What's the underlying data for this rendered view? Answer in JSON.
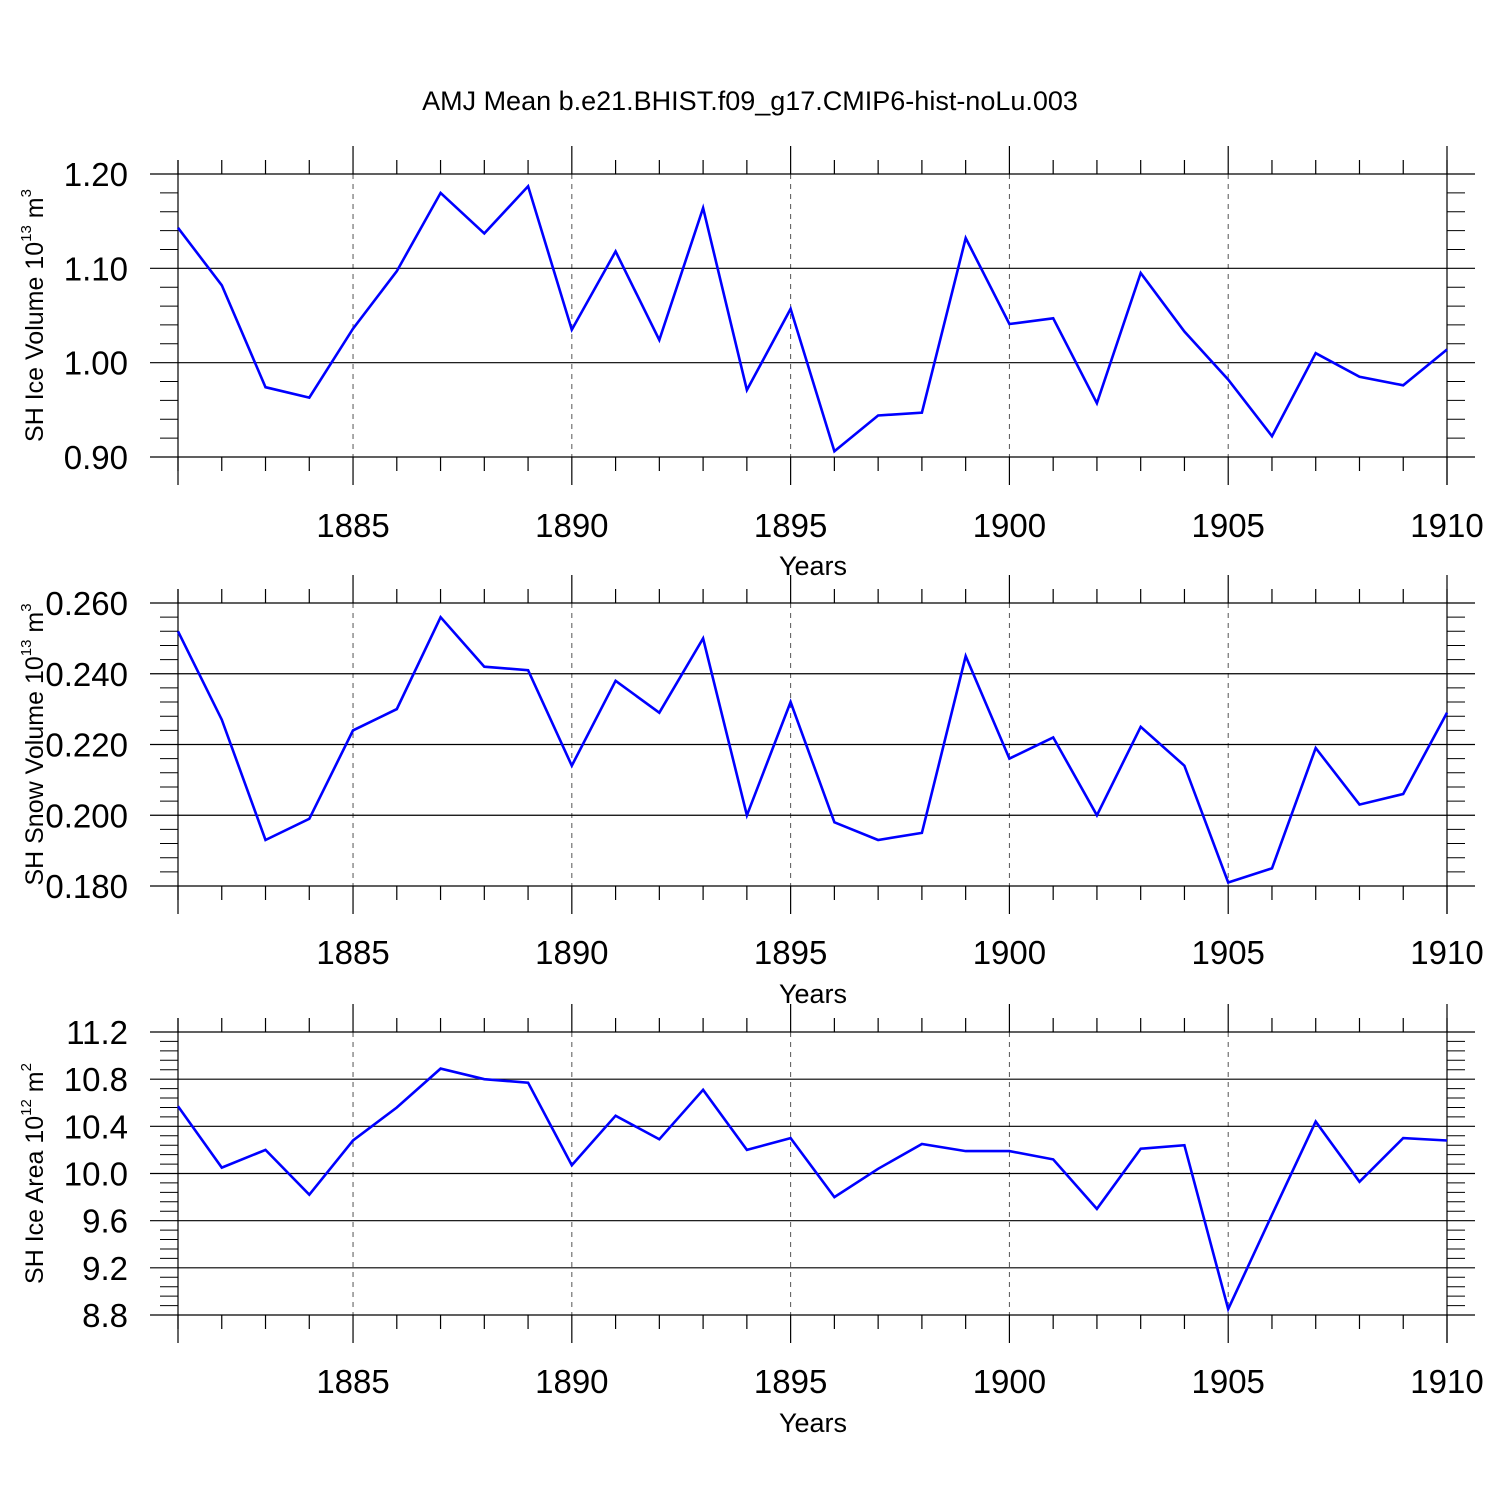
{
  "figure": {
    "title": "AMJ Mean b.e21.BHIST.f09_g17.CMIP6-hist-noLu.003"
  },
  "chart_data": [
    {
      "type": "line",
      "xlabel": "Years",
      "ylabel": {
        "main": "SH Ice Volume 10",
        "exp": "13",
        "unit": " m",
        "unit_exp": "3"
      },
      "xlim": [
        1881,
        1910
      ],
      "xticks": [
        1885,
        1890,
        1895,
        1900,
        1905,
        1910
      ],
      "ylim": [
        0.9,
        1.2
      ],
      "yticks": [
        0.9,
        1.0,
        1.1,
        1.2
      ],
      "ytick_labels": [
        "0.90",
        "1.00",
        "1.10",
        "1.20"
      ],
      "grid": "vertical dashed at major x ticks",
      "color": "#0000ff",
      "x": [
        1881,
        1882,
        1883,
        1884,
        1885,
        1886,
        1887,
        1888,
        1889,
        1890,
        1891,
        1892,
        1893,
        1894,
        1895,
        1896,
        1897,
        1898,
        1899,
        1900,
        1901,
        1902,
        1903,
        1904,
        1905,
        1906,
        1907,
        1908,
        1909,
        1910
      ],
      "values": [
        1.143,
        1.082,
        0.974,
        0.963,
        1.036,
        1.097,
        1.18,
        1.137,
        1.187,
        1.035,
        1.118,
        1.024,
        1.164,
        0.971,
        1.057,
        0.906,
        0.944,
        0.947,
        1.132,
        1.041,
        1.047,
        0.957,
        1.095,
        1.033,
        0.982,
        0.922,
        1.01,
        0.985,
        0.976,
        1.014
      ]
    },
    {
      "type": "line",
      "xlabel": "Years",
      "ylabel": {
        "main": "SH Snow Volume 10",
        "exp": "13",
        "unit": " m",
        "unit_exp": "3"
      },
      "xlim": [
        1881,
        1910
      ],
      "xticks": [
        1885,
        1890,
        1895,
        1900,
        1905,
        1910
      ],
      "ylim": [
        0.18,
        0.26
      ],
      "yticks": [
        0.18,
        0.2,
        0.22,
        0.24,
        0.26
      ],
      "ytick_labels": [
        "0.180",
        "0.200",
        "0.220",
        "0.240",
        "0.260"
      ],
      "grid": "vertical dashed at major x ticks",
      "color": "#0000ff",
      "x": [
        1881,
        1882,
        1883,
        1884,
        1885,
        1886,
        1887,
        1888,
        1889,
        1890,
        1891,
        1892,
        1893,
        1894,
        1895,
        1896,
        1897,
        1898,
        1899,
        1900,
        1901,
        1902,
        1903,
        1904,
        1905,
        1906,
        1907,
        1908,
        1909,
        1910
      ],
      "values": [
        0.252,
        0.227,
        0.193,
        0.199,
        0.224,
        0.23,
        0.256,
        0.242,
        0.241,
        0.214,
        0.238,
        0.229,
        0.25,
        0.2,
        0.232,
        0.198,
        0.193,
        0.195,
        0.245,
        0.216,
        0.222,
        0.2,
        0.225,
        0.214,
        0.181,
        0.185,
        0.219,
        0.203,
        0.206,
        0.229
      ]
    },
    {
      "type": "line",
      "xlabel": "Years",
      "ylabel": {
        "main": "SH Ice Area 10",
        "exp": "12",
        "unit": " m",
        "unit_exp": "2"
      },
      "xlim": [
        1881,
        1910
      ],
      "xticks": [
        1885,
        1890,
        1895,
        1900,
        1905,
        1910
      ],
      "ylim": [
        8.8,
        11.2
      ],
      "yticks": [
        8.8,
        9.2,
        9.6,
        10.0,
        10.4,
        10.8,
        11.2
      ],
      "ytick_labels": [
        "8.8",
        "9.2",
        "9.6",
        "10.0",
        "10.4",
        "10.8",
        "11.2"
      ],
      "grid": "vertical dashed at major x ticks",
      "color": "#0000ff",
      "x": [
        1881,
        1882,
        1883,
        1884,
        1885,
        1886,
        1887,
        1888,
        1889,
        1890,
        1891,
        1892,
        1893,
        1894,
        1895,
        1896,
        1897,
        1898,
        1899,
        1900,
        1901,
        1902,
        1903,
        1904,
        1905,
        1906,
        1907,
        1908,
        1909,
        1910
      ],
      "values": [
        10.57,
        10.05,
        10.2,
        9.82,
        10.28,
        10.56,
        10.89,
        10.8,
        10.77,
        10.07,
        10.49,
        10.29,
        10.71,
        10.2,
        10.3,
        9.8,
        10.04,
        10.25,
        10.19,
        10.19,
        10.12,
        9.7,
        10.21,
        10.24,
        8.85,
        9.65,
        10.44,
        9.93,
        10.3,
        10.28
      ]
    }
  ]
}
